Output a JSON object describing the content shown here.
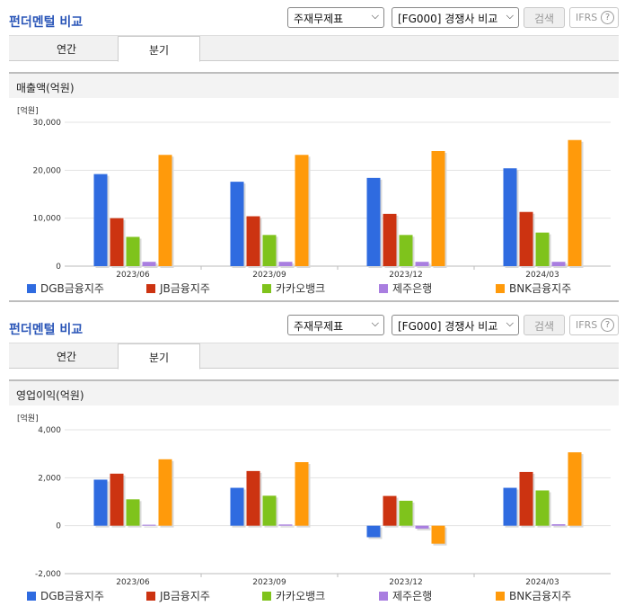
{
  "colors": {
    "DGB": "#2f6be0",
    "JB": "#cc3311",
    "KAKAO": "#7fc31c",
    "JEJU": "#a97ee0",
    "BNK": "#ff9a0b",
    "title": "#2b56b8"
  },
  "panels": [
    {
      "title": "펀더멘털 비교",
      "select_statement": "주재무제표",
      "select_peer": "[FG000] 경쟁사 비교",
      "search_label": "검색",
      "ifrs_label": "IFRS",
      "help_glyph": "?",
      "tabs": [
        "연간",
        "분기"
      ],
      "active_tab": "분기",
      "section_title": "매출액(억원)"
    },
    {
      "title": "펀더멘털 비교",
      "select_statement": "주재무제표",
      "select_peer": "[FG000] 경쟁사 비교",
      "search_label": "검색",
      "ifrs_label": "IFRS",
      "help_glyph": "?",
      "tabs": [
        "연간",
        "분기"
      ],
      "active_tab": "분기",
      "section_title": "영업이익(억원)"
    }
  ],
  "chart_data": [
    {
      "type": "bar",
      "unit_label": "[억원]",
      "categories": [
        "2023/06",
        "2023/09",
        "2023/12",
        "2024/03"
      ],
      "ylim": [
        0,
        30000
      ],
      "yticks": [
        0,
        10000,
        20000,
        30000
      ],
      "ytick_labels": [
        "0",
        "10,000",
        "20,000",
        "30,000"
      ],
      "grid": true,
      "legend": "bottom",
      "series": [
        {
          "name": "DGB금융지주",
          "key": "DGB",
          "values": [
            19200,
            17600,
            18400,
            20400
          ]
        },
        {
          "name": "JB금융지주",
          "key": "JB",
          "values": [
            10000,
            10400,
            10900,
            11300
          ]
        },
        {
          "name": "카카오뱅크",
          "key": "KAKAO",
          "values": [
            6100,
            6500,
            6500,
            7000
          ]
        },
        {
          "name": "제주은행",
          "key": "JEJU",
          "values": [
            900,
            900,
            900,
            900
          ]
        },
        {
          "name": "BNK금융지주",
          "key": "BNK",
          "values": [
            23200,
            23200,
            24000,
            26300
          ]
        }
      ]
    },
    {
      "type": "bar",
      "unit_label": "[억원]",
      "categories": [
        "2023/06",
        "2023/09",
        "2023/12",
        "2024/03"
      ],
      "ylim": [
        -2000,
        4000
      ],
      "yticks": [
        -2000,
        0,
        2000,
        4000
      ],
      "ytick_labels": [
        "-2,000",
        "0",
        "2,000",
        "4,000"
      ],
      "grid": true,
      "legend": "bottom",
      "series": [
        {
          "name": "DGB금융지주",
          "key": "DGB",
          "values": [
            1920,
            1580,
            -480,
            1580
          ]
        },
        {
          "name": "JB금융지주",
          "key": "JB",
          "values": [
            2170,
            2280,
            1240,
            2240
          ]
        },
        {
          "name": "카카오뱅크",
          "key": "KAKAO",
          "values": [
            1100,
            1250,
            1040,
            1470
          ]
        },
        {
          "name": "제주은행",
          "key": "JEJU",
          "values": [
            40,
            50,
            -120,
            60
          ]
        },
        {
          "name": "BNK금융지주",
          "key": "BNK",
          "values": [
            2770,
            2650,
            -750,
            3060
          ]
        }
      ]
    }
  ]
}
